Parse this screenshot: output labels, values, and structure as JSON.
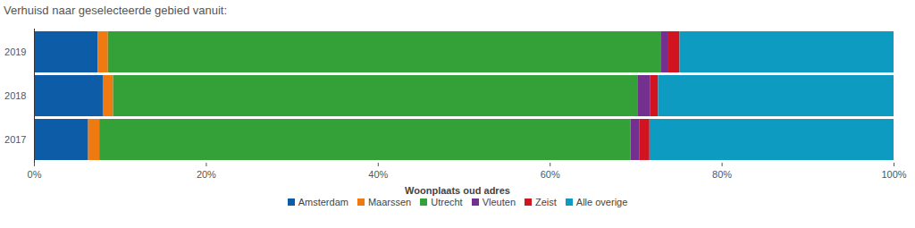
{
  "chart_data": {
    "type": "bar",
    "orientation": "horizontal",
    "stacked": true,
    "title": "Verhuisd naar geselecteerde gebied vanuit:",
    "categories": [
      "2019",
      "2018",
      "2017"
    ],
    "series": [
      {
        "name": "Amsterdam",
        "color": "#0c5ca8",
        "values": [
          7.4,
          8.0,
          6.3
        ]
      },
      {
        "name": "Maarssen",
        "color": "#f07a12",
        "values": [
          1.2,
          1.2,
          1.3
        ]
      },
      {
        "name": "Utrecht",
        "color": "#33a137",
        "values": [
          64.3,
          61.0,
          61.8
        ]
      },
      {
        "name": "Vleuten",
        "color": "#73308f",
        "values": [
          0.9,
          1.5,
          1.0
        ]
      },
      {
        "name": "Zeist",
        "color": "#d1141f",
        "values": [
          1.3,
          0.9,
          1.2
        ]
      },
      {
        "name": "Alle overige",
        "color": "#0d9bc2",
        "values": [
          24.9,
          27.4,
          28.4
        ]
      }
    ],
    "xlim": [
      0,
      100
    ],
    "xticks": [
      {
        "value": 0,
        "label": "0%"
      },
      {
        "value": 20,
        "label": "20%"
      },
      {
        "value": 40,
        "label": "40%"
      },
      {
        "value": 60,
        "label": "60%"
      },
      {
        "value": 80,
        "label": "80%"
      },
      {
        "value": 100,
        "label": "100%"
      }
    ],
    "grid": false,
    "legend": "bottom",
    "legend_title": "Woonplaats oud adres"
  }
}
